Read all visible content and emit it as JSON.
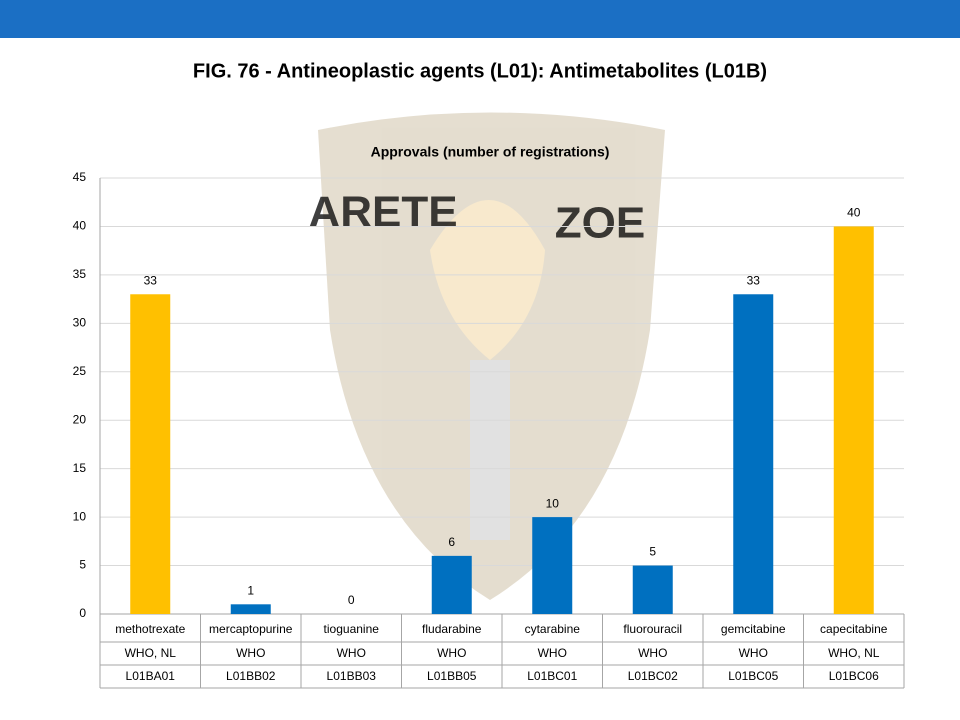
{
  "chart_data": {
    "type": "bar",
    "title": "FIG. 76 - Antineoplastic agents (L01): Antimetabolites (L01B)",
    "subtitle": "Approvals (number of registrations)",
    "watermark": [
      "ARETE",
      "ZOE"
    ],
    "categories": [
      "methotrexate",
      "mercaptopurine",
      "tioguanine",
      "fludarabine",
      "cytarabine",
      "fluorouracil",
      "gemcitabine",
      "capecitabine"
    ],
    "who_status": [
      "WHO, NL",
      "WHO",
      "WHO",
      "WHO",
      "WHO",
      "WHO",
      "WHO",
      "WHO, NL"
    ],
    "atc_codes": [
      "L01BA01",
      "L01BB02",
      "L01BB03",
      "L01BB05",
      "L01BC01",
      "L01BC02",
      "L01BC05",
      "L01BC06"
    ],
    "values": [
      33,
      1,
      0,
      6,
      10,
      5,
      33,
      40
    ],
    "colors": [
      "#FFC000",
      "#0070C0",
      "#0070C0",
      "#0070C0",
      "#0070C0",
      "#0070C0",
      "#0070C0",
      "#FFC000"
    ],
    "ylim": [
      0,
      45
    ],
    "yticks": [
      0,
      5,
      10,
      15,
      20,
      25,
      30,
      35,
      40,
      45
    ],
    "grid": true
  }
}
